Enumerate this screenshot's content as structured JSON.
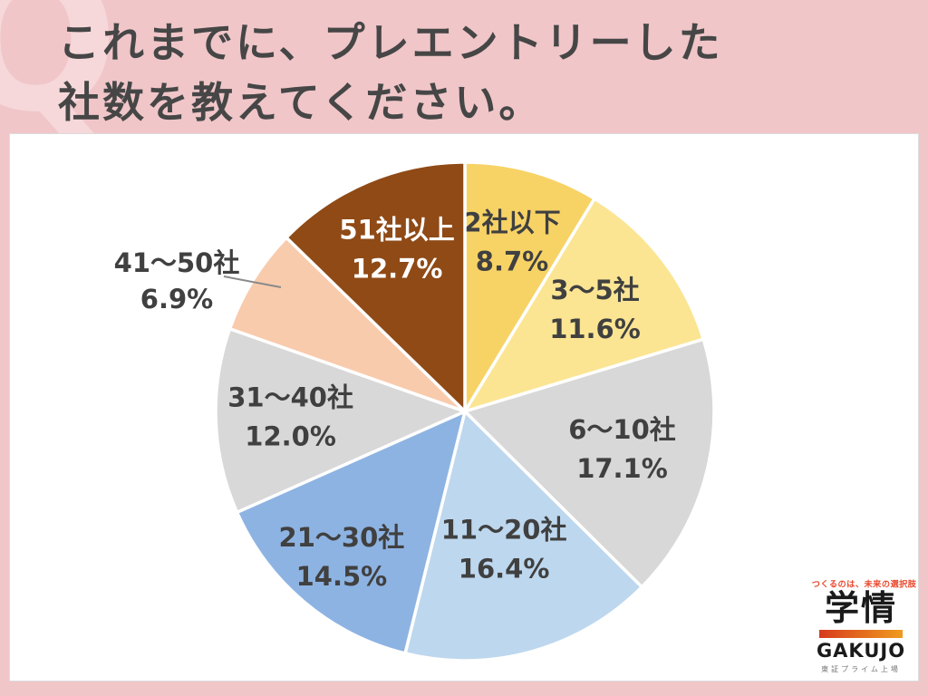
{
  "header": {
    "watermark": "Q",
    "title_line1": "これまでに、プレエントリーした",
    "title_line2": "社数を教えてください。"
  },
  "chart_data": {
    "type": "pie",
    "title": "これまでに、プレエントリーした社数を教えてください。",
    "labels": [
      "2社以下",
      "3〜5社",
      "6〜10社",
      "11〜20社",
      "21〜30社",
      "31〜40社",
      "41〜50社",
      "51社以上"
    ],
    "values": [
      8.7,
      11.6,
      17.1,
      16.4,
      14.5,
      12.0,
      6.9,
      12.7
    ],
    "value_labels": [
      "8.7%",
      "11.6%",
      "17.1%",
      "16.4%",
      "14.5%",
      "12.0%",
      "6.9%",
      "12.7%"
    ],
    "colors": [
      "#f7d366",
      "#fbe593",
      "#d8d8d8",
      "#bdd7ee",
      "#8db3e2",
      "#d8d8d8",
      "#f8cbad",
      "#8f4a16"
    ],
    "label_text_colors": [
      "#404040",
      "#404040",
      "#404040",
      "#404040",
      "#404040",
      "#404040",
      "#404040",
      "#ffffff"
    ],
    "layout": {
      "start_angle_deg": 0,
      "direction": "clockwise",
      "label_radius_fraction": [
        0.7,
        0.66,
        0.65,
        0.58,
        0.77,
        0.7,
        1.0,
        0.7
      ],
      "outside_label_index": 6,
      "separator_color": "#ffffff",
      "legend": "none"
    }
  },
  "logo": {
    "tagline": "つくるのは、未来の選択肢",
    "name_kanji": "学情",
    "name_latin": "GAKUJO",
    "subtitle": "東証プライム上場"
  },
  "colors": {
    "background_pink": "#f0c6c9",
    "watermark_pink": "#f6d8da",
    "title_text": "#464646",
    "panel_white": "#ffffff",
    "label_text": "#404040",
    "leader_line": "#8a8a8a",
    "logo_red": "#e94a2f"
  }
}
